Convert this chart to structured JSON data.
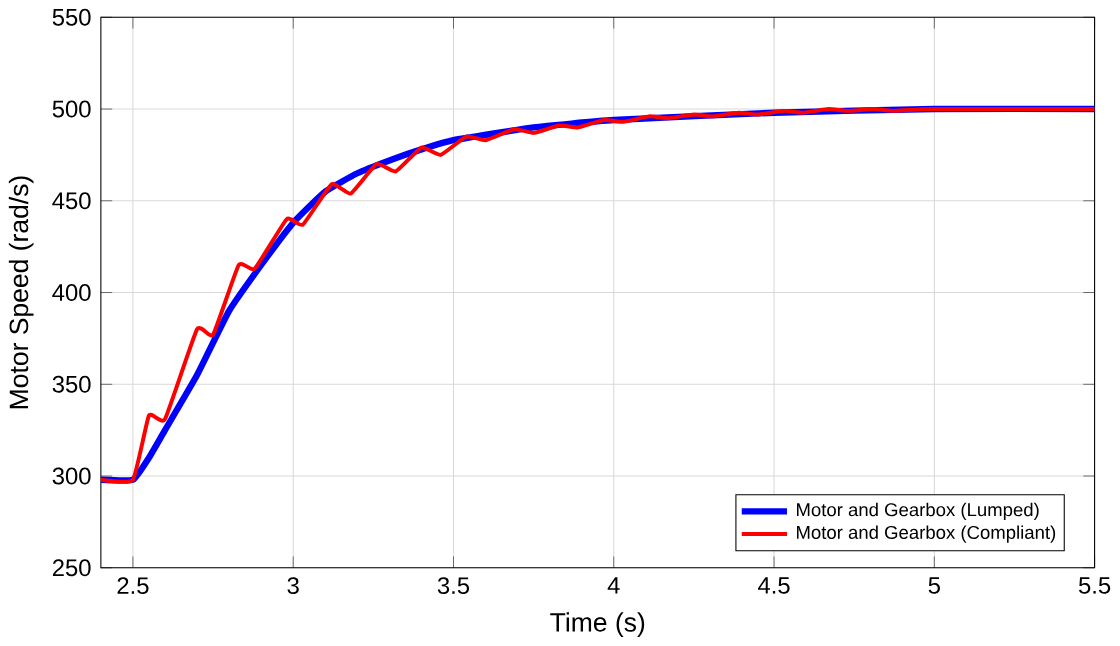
{
  "chart_data": {
    "type": "line",
    "xlabel": "Time (s)",
    "ylabel": "Motor Speed (rad/s)",
    "xlim": [
      2.4,
      5.5
    ],
    "xticks": [
      2.5,
      3,
      3.5,
      4,
      4.5,
      5,
      5.5
    ],
    "ylim": [
      250,
      550
    ],
    "yticks": [
      250,
      300,
      350,
      400,
      450,
      500,
      550
    ],
    "grid": true,
    "legend": "bottom right",
    "line_style": "solid",
    "series": [
      {
        "name": "Motor and Gearbox (Lumped)",
        "color": "#0000ff",
        "x": [
          2.4,
          2.5,
          2.55,
          2.6,
          2.7,
          2.8,
          2.9,
          3.0,
          3.1,
          3.2,
          3.3,
          3.4,
          3.5,
          3.75,
          4.0,
          4.5,
          5.0,
          5.5
        ],
        "values": [
          298,
          298,
          310,
          325,
          355,
          390,
          415,
          438,
          455,
          465,
          472,
          478,
          483,
          490,
          494,
          498,
          500,
          500
        ]
      },
      {
        "name": "Motor and Gearbox (Compliant)",
        "color": "#ff0000",
        "x": [
          2.4,
          2.5,
          2.55,
          2.6,
          2.7,
          2.75,
          2.83,
          2.88,
          2.98,
          3.03,
          3.12,
          3.18,
          3.26,
          3.32,
          3.4,
          3.46,
          3.54,
          3.6,
          3.69,
          3.75,
          3.83,
          3.89,
          3.97,
          4.03,
          4.11,
          4.17,
          4.25,
          4.31,
          4.39,
          4.45,
          4.53,
          4.59,
          4.67,
          4.73,
          4.81,
          4.87,
          5.0,
          5.5
        ],
        "values": [
          298,
          298,
          333,
          331,
          380,
          377,
          415,
          413,
          440,
          437,
          459,
          454,
          470,
          466,
          479,
          475,
          485,
          483,
          489,
          487,
          491,
          490,
          494,
          493,
          496,
          495,
          497,
          496,
          498,
          497,
          499,
          498,
          500,
          499,
          500,
          499,
          500,
          500
        ]
      }
    ]
  }
}
